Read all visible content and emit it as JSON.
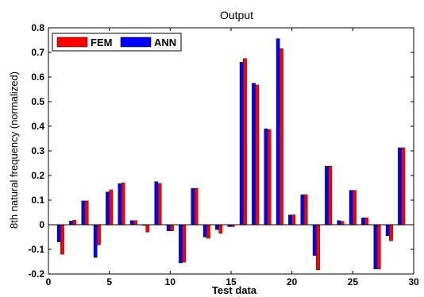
{
  "chart_data": {
    "type": "bar",
    "title": "Output",
    "xlabel": "Test data",
    "ylabel": "8th natural frequency (normalized)",
    "xlim": [
      0,
      30
    ],
    "ylim": [
      -0.2,
      0.8
    ],
    "xticks": [
      0,
      5,
      10,
      15,
      20,
      25,
      30
    ],
    "yticks": [
      -0.2,
      -0.1,
      0,
      0.1,
      0.2,
      0.3,
      0.4,
      0.5,
      0.6,
      0.7,
      0.8
    ],
    "xtick_labels": [
      "0",
      "5",
      "10",
      "15",
      "20",
      "25",
      "30"
    ],
    "ytick_labels": [
      "-0.2",
      "-0.1",
      "0",
      "0.1",
      "0.2",
      "0.3",
      "0.4",
      "0.5",
      "0.6",
      "0.7",
      "0.8"
    ],
    "grid": false,
    "legend_position": "top-left",
    "categories": [
      1,
      2,
      3,
      4,
      5,
      6,
      7,
      8,
      9,
      10,
      11,
      12,
      13,
      14,
      15,
      16,
      17,
      18,
      19,
      20,
      21,
      22,
      23,
      24,
      25,
      26,
      27,
      28,
      29
    ],
    "series": [
      {
        "name": "ANN",
        "color": "#0000ff",
        "values": [
          -0.07,
          0.015,
          0.097,
          -0.133,
          0.133,
          0.167,
          0.017,
          -0.003,
          0.175,
          -0.025,
          -0.155,
          0.148,
          -0.05,
          -0.02,
          -0.008,
          0.66,
          0.575,
          0.39,
          0.756,
          0.04,
          0.122,
          -0.125,
          0.238,
          0.017,
          0.14,
          0.028,
          -0.18,
          -0.045,
          0.313
        ]
      },
      {
        "name": "FEM",
        "color": "#ff0000",
        "values": [
          -0.12,
          0.018,
          0.097,
          -0.082,
          0.142,
          0.17,
          0.017,
          -0.03,
          0.168,
          -0.025,
          -0.152,
          0.148,
          -0.055,
          -0.035,
          -0.008,
          0.675,
          0.568,
          0.387,
          0.715,
          0.04,
          0.122,
          -0.183,
          0.238,
          0.014,
          0.14,
          0.028,
          -0.18,
          -0.065,
          0.313
        ]
      }
    ]
  },
  "legend_items": [
    {
      "label": "FEM",
      "color": "#ff0000"
    },
    {
      "label": "ANN",
      "color": "#0000ff"
    }
  ]
}
